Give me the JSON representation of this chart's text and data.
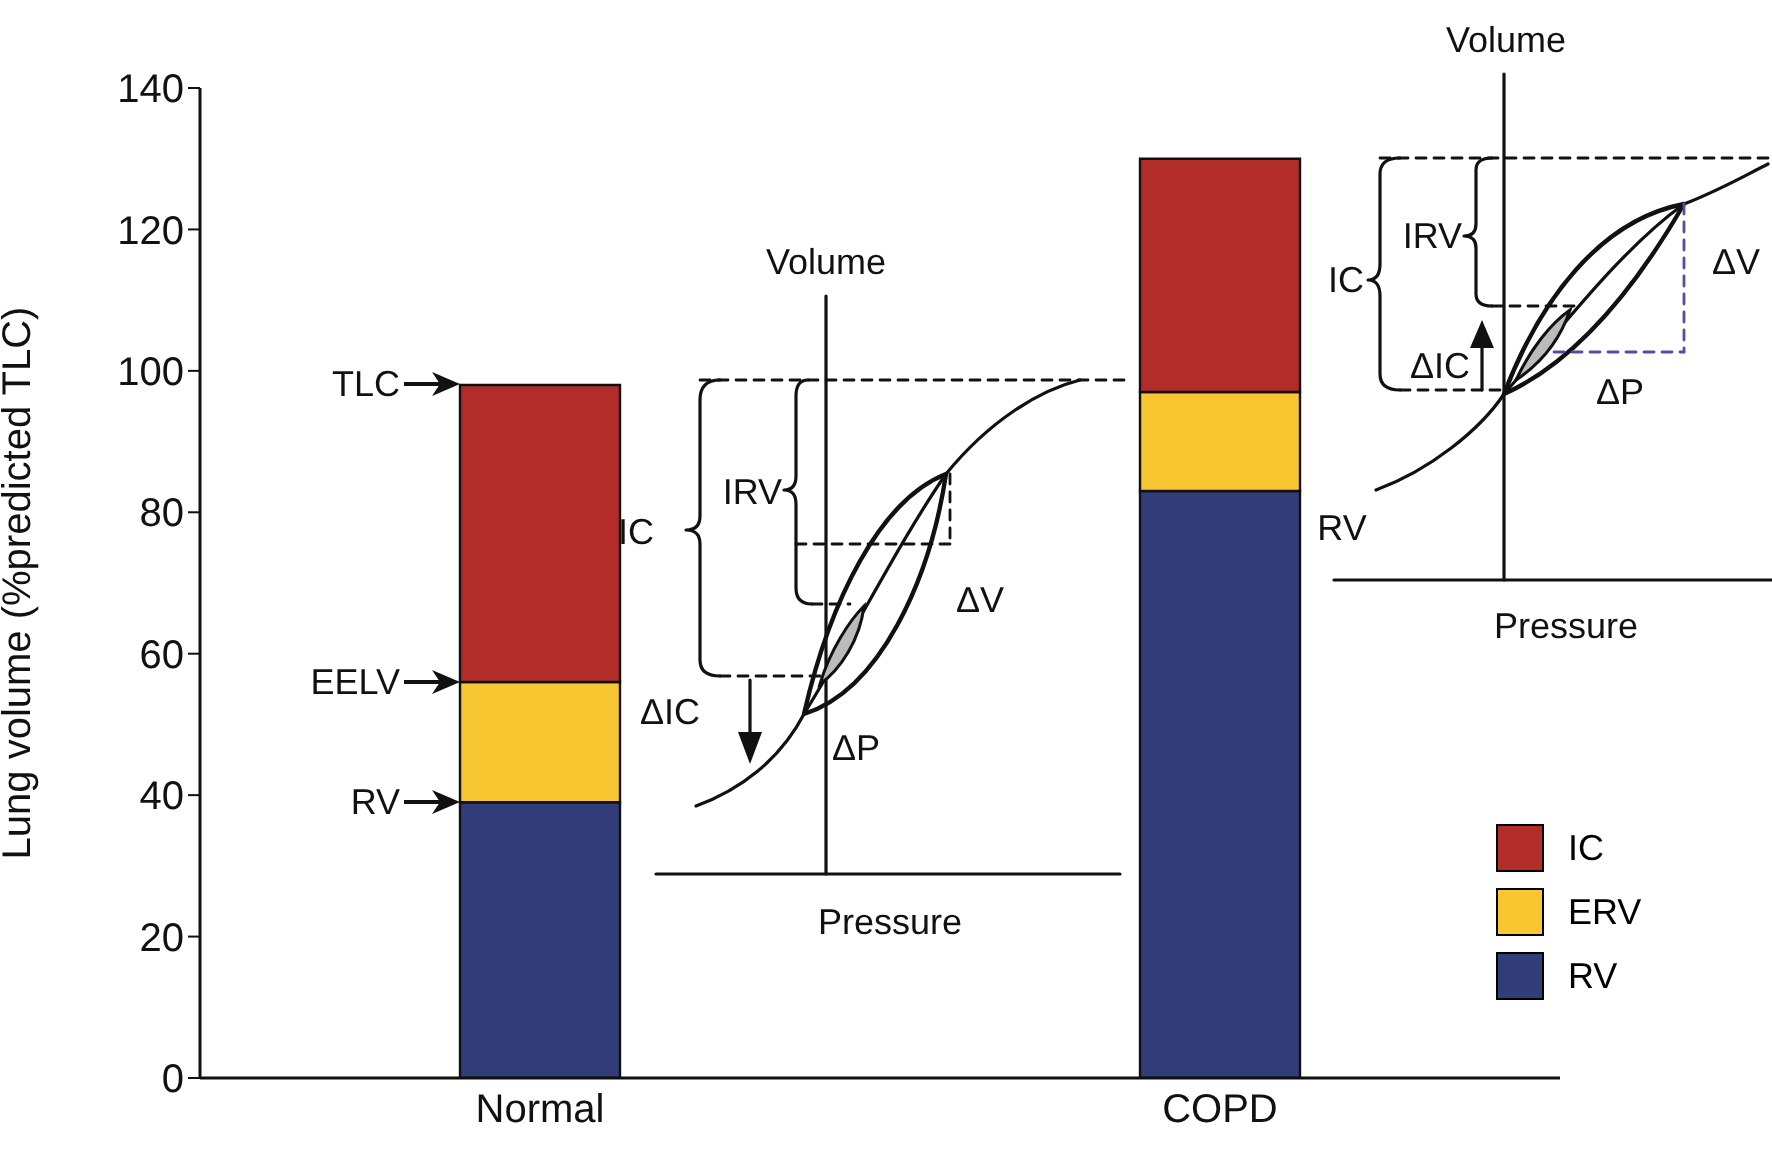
{
  "chart_data": {
    "type": "bar",
    "categories": [
      "Normal",
      "COPD"
    ],
    "stacked": true,
    "ylabel": "Lung volume (%predicted TLC)",
    "ylim": [
      0,
      140
    ],
    "yticks": [
      0,
      20,
      40,
      60,
      80,
      100,
      120,
      140
    ],
    "legend": "bottom right",
    "series": [
      {
        "name": "RV",
        "color": "#323c78",
        "values": [
          39,
          83
        ]
      },
      {
        "name": "ERV",
        "color": "#f8c630",
        "values": [
          17,
          14
        ]
      },
      {
        "name": "IC",
        "color": "#b22d2a",
        "values": [
          42,
          33
        ]
      }
    ],
    "annotations": [
      "TLC",
      "EELV",
      "RV",
      "Volume",
      "Pressure",
      "IC",
      "IRV",
      "ΔV",
      "ΔIC",
      "ΔP",
      "Volume",
      "Pressure",
      "IC",
      "IRV",
      "ΔV",
      "ΔIC",
      "ΔP",
      "RV"
    ]
  }
}
